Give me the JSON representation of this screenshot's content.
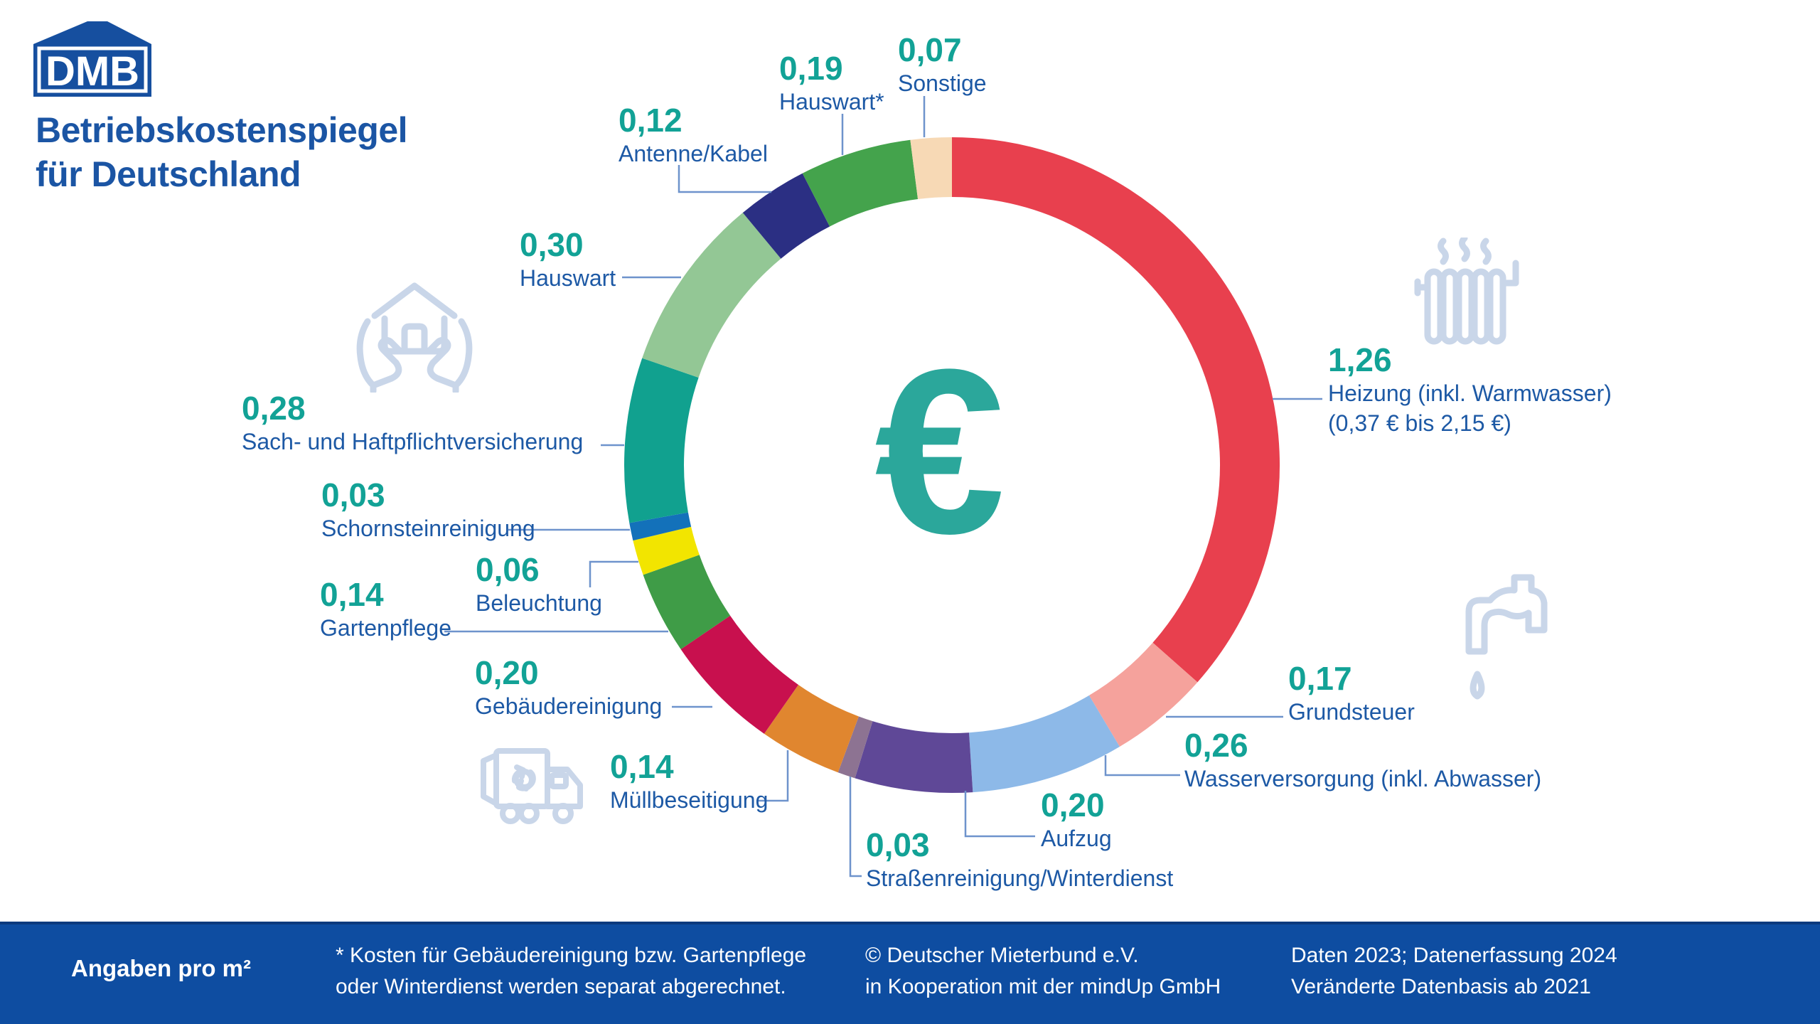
{
  "header": {
    "logo_text": "DMB",
    "title_line1": "Betriebskostenspiegel",
    "title_line2": "für Deutschland"
  },
  "colors": {
    "title": "#1B55A4",
    "logo_blue": "#164F9F",
    "value_text": "#12A296",
    "label_text": "#1D59A5",
    "leader_line": "#6E93CC",
    "icon": "#C9D6E9",
    "euro": "#2BA79B",
    "footer_bg": "#0E4DA1",
    "footer_edge": "#0C3A7E",
    "footer_text": "#FFFFFF"
  },
  "chart_data": {
    "type": "pie",
    "subtype": "donut",
    "title": "Betriebskostenspiegel für Deutschland",
    "unit": "€ pro m²",
    "total": 3.45,
    "center_symbol": "€",
    "start_angle_deg": 0,
    "direction": "clockwise",
    "legend_position": "around",
    "segments": [
      {
        "id": "heizung",
        "label": "Heizung (inkl. Warmwasser)",
        "sublabel": "(0,37 € bis 2,15 €)",
        "value": 1.26,
        "display_value": "1,26",
        "color": "#E8404E"
      },
      {
        "id": "grundsteuer",
        "label": "Grundsteuer",
        "sublabel": "",
        "value": 0.17,
        "display_value": "0,17",
        "color": "#F5A29C"
      },
      {
        "id": "wasserversorgung",
        "label": "Wasserversorgung (inkl. Abwasser)",
        "sublabel": "",
        "value": 0.26,
        "display_value": "0,26",
        "color": "#8DB9E8"
      },
      {
        "id": "aufzug",
        "label": "Aufzug",
        "sublabel": "",
        "value": 0.2,
        "display_value": "0,20",
        "color": "#5F4897"
      },
      {
        "id": "strassenreinigung",
        "label": "Straßenreinigung/Winterdienst",
        "sublabel": "",
        "value": 0.03,
        "display_value": "0,03",
        "color": "#8D7392"
      },
      {
        "id": "muellbeseitigung",
        "label": "Müllbeseitigung",
        "sublabel": "",
        "value": 0.14,
        "display_value": "0,14",
        "color": "#E0862F"
      },
      {
        "id": "gebaeudereinigung",
        "label": "Gebäudereinigung",
        "sublabel": "",
        "value": 0.2,
        "display_value": "0,20",
        "color": "#C8104E"
      },
      {
        "id": "gartenpflege",
        "label": "Gartenpflege",
        "sublabel": "",
        "value": 0.14,
        "display_value": "0,14",
        "color": "#3F9C47"
      },
      {
        "id": "beleuchtung",
        "label": "Beleuchtung",
        "sublabel": "",
        "value": 0.06,
        "display_value": "0,06",
        "color": "#F2E500"
      },
      {
        "id": "schornsteinreinigung",
        "label": "Schornsteinreinigung",
        "sublabel": "",
        "value": 0.03,
        "display_value": "0,03",
        "color": "#1371BA"
      },
      {
        "id": "versicherung",
        "label": "Sach- und Haftpflichtversicherung",
        "sublabel": "",
        "value": 0.28,
        "display_value": "0,28",
        "color": "#11A18F"
      },
      {
        "id": "hauswart",
        "label": "Hauswart",
        "sublabel": "",
        "value": 0.3,
        "display_value": "0,30",
        "color": "#93C795"
      },
      {
        "id": "antenne",
        "label": "Antenne/Kabel",
        "sublabel": "",
        "value": 0.12,
        "display_value": "0,12",
        "color": "#2B2F83"
      },
      {
        "id": "hauswart2",
        "label": "Hauswart*",
        "sublabel": "",
        "value": 0.19,
        "display_value": "0,19",
        "color": "#44A34C"
      },
      {
        "id": "sonstige",
        "label": "Sonstige",
        "sublabel": "",
        "value": 0.07,
        "display_value": "0,07",
        "color": "#F7D9B5"
      }
    ]
  },
  "icons": [
    {
      "name": "hands-house-icon"
    },
    {
      "name": "radiator-icon"
    },
    {
      "name": "faucet-icon"
    },
    {
      "name": "garbage-truck-icon"
    }
  ],
  "footer": {
    "unit_label": "Angaben pro m²",
    "footnote_line1": "* Kosten für Gebäudereinigung bzw. Gartenpflege",
    "footnote_line2": "oder Winterdienst werden separat abgerechnet.",
    "copyright_line1": "© Deutscher Mieterbund e.V.",
    "copyright_line2": "in Kooperation mit der mindUp GmbH",
    "data_note_line1": "Daten 2023; Datenerfassung 2024",
    "data_note_line2": "Veränderte Datenbasis ab 2021"
  }
}
